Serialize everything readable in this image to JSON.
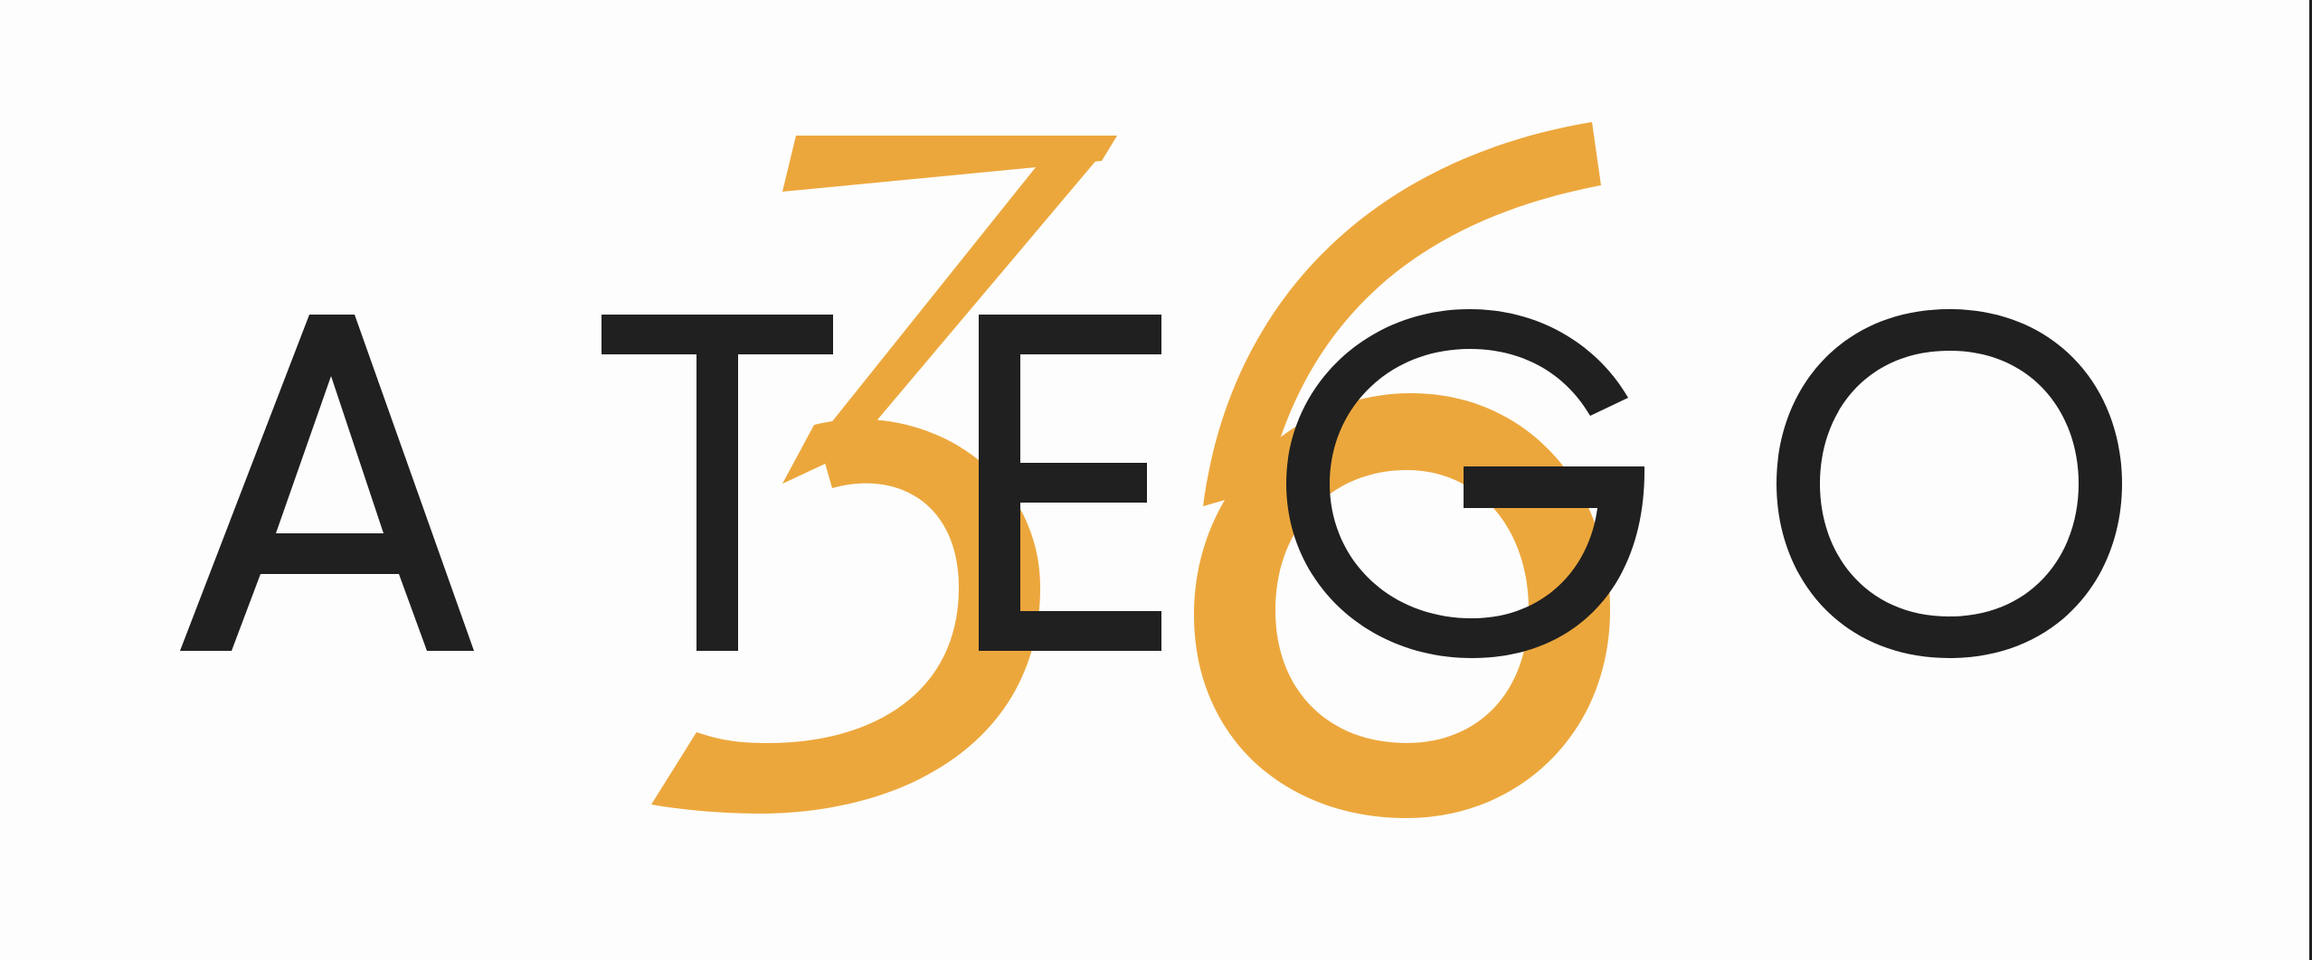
{
  "logo": {
    "wordmark": "ATEGO",
    "letters": [
      "A",
      "T",
      "E",
      "G",
      "O"
    ],
    "number": "36",
    "digits": [
      "3",
      "6"
    ]
  },
  "colors": {
    "background": "#fdfdfd",
    "wordmark": "#202020",
    "number": "#eca73c",
    "edge": "#1f1f1f"
  }
}
